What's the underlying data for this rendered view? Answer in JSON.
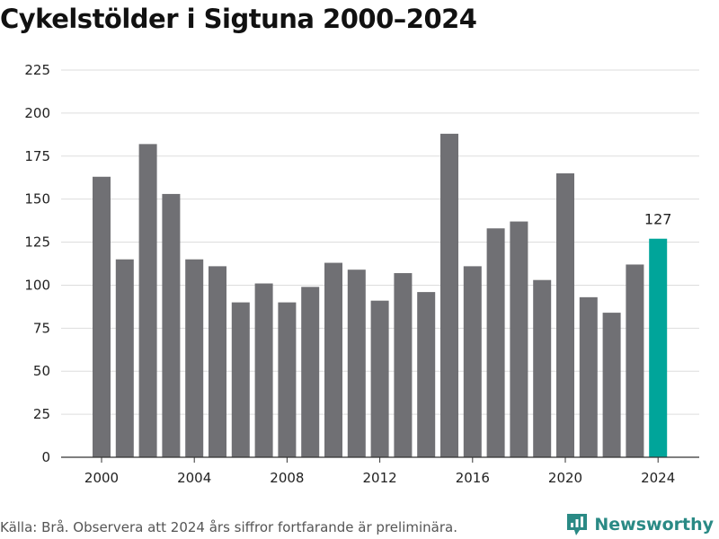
{
  "title": "Cykelstölder i Sigtuna 2000–2024",
  "footer": {
    "source": "Källa: Brå. Observera att 2024 års siffror fortfarande är preliminära.",
    "brand": "Newsworthy"
  },
  "colors": {
    "bar": "#707074",
    "highlight": "#00a59a",
    "grid": "#dddddd",
    "brand": "#2a8a85"
  },
  "chart_data": {
    "type": "bar",
    "title": "Cykelstölder i Sigtuna 2000–2024",
    "xlabel": "",
    "ylabel": "",
    "categories": [
      2000,
      2001,
      2002,
      2003,
      2004,
      2005,
      2006,
      2007,
      2008,
      2009,
      2010,
      2011,
      2012,
      2013,
      2014,
      2015,
      2016,
      2017,
      2018,
      2019,
      2020,
      2021,
      2022,
      2023,
      2024
    ],
    "values": [
      163,
      115,
      182,
      153,
      115,
      111,
      90,
      101,
      90,
      99,
      113,
      109,
      91,
      107,
      96,
      188,
      111,
      133,
      137,
      103,
      165,
      93,
      84,
      112,
      127
    ],
    "ylim": [
      0,
      225
    ],
    "y_ticks": [
      0,
      25,
      50,
      75,
      100,
      125,
      150,
      175,
      200,
      225
    ],
    "x_ticks": [
      2000,
      2004,
      2008,
      2012,
      2016,
      2020,
      2024
    ],
    "highlight_category": 2024,
    "highlight_label": "127",
    "grid": true
  }
}
